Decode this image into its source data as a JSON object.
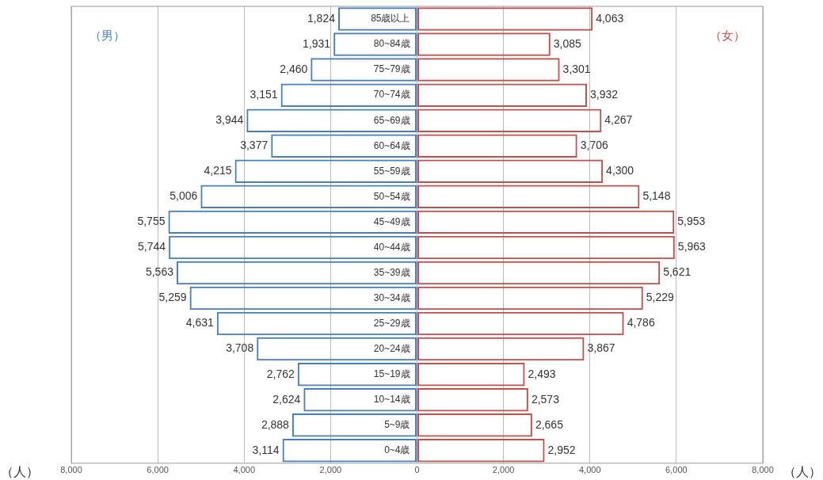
{
  "chart_data": {
    "type": "bar",
    "orientation": "horizontal",
    "categories": [
      "85歳以上",
      "80~84歳",
      "75~79歳",
      "70~74歳",
      "65~69歳",
      "60~64歳",
      "55~59歳",
      "50~54歳",
      "45~49歳",
      "40~44歳",
      "35~39歳",
      "30~34歳",
      "25~29歳",
      "20~24歳",
      "15~19歳",
      "10~14歳",
      "5~9歳",
      "0~4歳"
    ],
    "series": [
      {
        "name": "（男）",
        "color": "#4a7ebb",
        "base": [
          -1824,
          -1931,
          -2460,
          -3151,
          -3944,
          -3377,
          -4215,
          -5006,
          -5755,
          -5744,
          -5563,
          -5259,
          -4631,
          -3708,
          -2762,
          -2624,
          -2888,
          -3114
        ],
        "values": [
          1824,
          1931,
          2460,
          3151,
          3944,
          3377,
          4215,
          5006,
          5755,
          5744,
          5563,
          5259,
          4631,
          3708,
          2762,
          2624,
          2888,
          3114
        ],
        "value_labels": [
          "1,824",
          "1,931",
          "2,460",
          "3,151",
          "3,944",
          "3,377",
          "4,215",
          "5,006",
          "5,755",
          "5,744",
          "5,563",
          "5,259",
          "4,631",
          "3,708",
          "2,762",
          "2,624",
          "2,888",
          "3,114"
        ]
      },
      {
        "name": "（女）",
        "color": "#c0504d",
        "values": [
          4063,
          3085,
          3301,
          3932,
          4267,
          3706,
          4300,
          5148,
          5953,
          5963,
          5621,
          5229,
          4786,
          3867,
          2493,
          2573,
          2665,
          2952
        ],
        "value_labels": [
          "4,063",
          "3,085",
          "3,301",
          "3,932",
          "4,267",
          "3,706",
          "4,300",
          "5,148",
          "5,953",
          "5,963",
          "5,621",
          "5,229",
          "4,786",
          "3,867",
          "2,493",
          "2,573",
          "2,665",
          "2,952"
        ]
      }
    ],
    "xlim": [
      -8000,
      8000
    ],
    "xticks": [
      {
        "value": -8000,
        "label": "8,000"
      },
      {
        "value": -6000,
        "label": "6,000"
      },
      {
        "value": -4000,
        "label": "4,000"
      },
      {
        "value": -2000,
        "label": "2,000"
      },
      0,
      {
        "value": 2000,
        "label": "2,000"
      },
      {
        "value": 4000,
        "label": "4,000"
      },
      {
        "value": 6000,
        "label": "6,000"
      },
      {
        "value": 8000,
        "label": "8,000"
      }
    ],
    "grid": "x",
    "legend": false,
    "annotations": [
      "（人）",
      "（人）"
    ]
  }
}
